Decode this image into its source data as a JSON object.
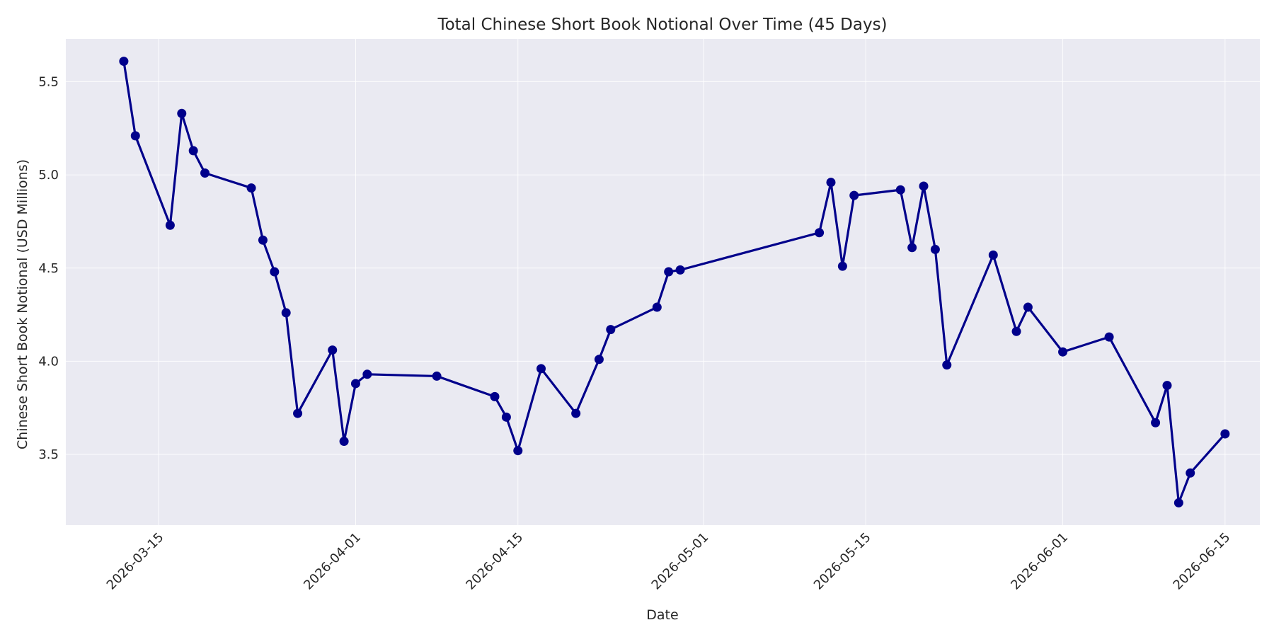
{
  "chart_data": {
    "type": "line",
    "title": "Total Chinese Short Book Notional Over Time (45 Days)",
    "xlabel": "Date",
    "ylabel": "Chinese Short Book Notional (USD Millions)",
    "xlim": [
      "2026-03-07",
      "2026-06-18"
    ],
    "ylim": [
      3.12,
      5.73
    ],
    "x_ticks": [
      "2026-03-15",
      "2026-04-01",
      "2026-04-15",
      "2026-05-01",
      "2026-05-15",
      "2026-06-01",
      "2026-06-15"
    ],
    "y_ticks": [
      3.5,
      4.0,
      4.5,
      5.0,
      5.5
    ],
    "y_tick_labels": [
      "3.5",
      "4.0",
      "4.5",
      "5.0",
      "5.5"
    ],
    "grid": true,
    "colors": {
      "line": "#00008B",
      "marker": "#00008B",
      "plot_background": "#EAEAF2",
      "grid": "#FFFFFF"
    },
    "series": [
      {
        "x": [
          "2026-03-12",
          "2026-03-13",
          "2026-03-16",
          "2026-03-17",
          "2026-03-18",
          "2026-03-19",
          "2026-03-23",
          "2026-03-24",
          "2026-03-25",
          "2026-03-26",
          "2026-03-27",
          "2026-03-30",
          "2026-03-31",
          "2026-04-01",
          "2026-04-02",
          "2026-04-08",
          "2026-04-13",
          "2026-04-14",
          "2026-04-15",
          "2026-04-17",
          "2026-04-20",
          "2026-04-22",
          "2026-04-23",
          "2026-04-27",
          "2026-04-28",
          "2026-04-29",
          "2026-05-11",
          "2026-05-12",
          "2026-05-13",
          "2026-05-14",
          "2026-05-18",
          "2026-05-19",
          "2026-05-20",
          "2026-05-21",
          "2026-05-22",
          "2026-05-26",
          "2026-05-28",
          "2026-05-29",
          "2026-06-01",
          "2026-06-05",
          "2026-06-09",
          "2026-06-10",
          "2026-06-11",
          "2026-06-12",
          "2026-06-15"
        ],
        "values": [
          5.61,
          5.21,
          4.73,
          5.33,
          5.13,
          5.01,
          4.93,
          4.65,
          4.48,
          4.26,
          3.72,
          4.06,
          3.57,
          3.88,
          3.93,
          3.92,
          3.81,
          3.7,
          3.52,
          3.96,
          3.72,
          4.01,
          4.17,
          4.29,
          4.48,
          4.49,
          4.69,
          4.96,
          4.51,
          4.89,
          4.92,
          4.61,
          4.94,
          4.6,
          3.98,
          4.57,
          4.16,
          4.29,
          4.05,
          4.13,
          3.67,
          3.87,
          3.24,
          3.4,
          3.61
        ]
      }
    ]
  }
}
